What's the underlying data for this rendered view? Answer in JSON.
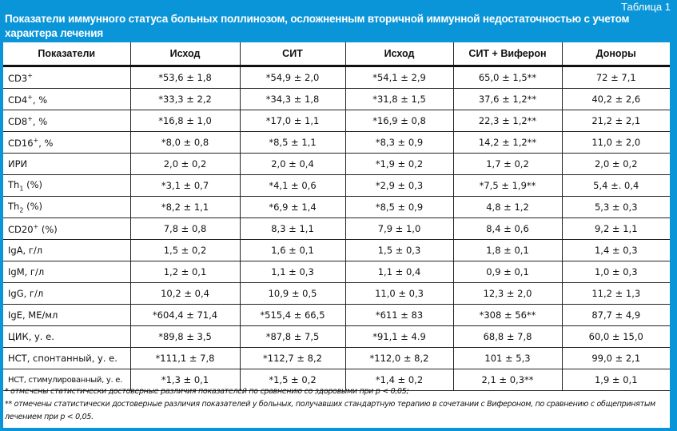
{
  "header": {
    "table_number": "Таблица 1",
    "title": "Показатели иммунного статуса больных поллинозом, осложненным вторичной иммунной недостаточностью с учетом характера лечения"
  },
  "columns": [
    "Показатели",
    "Исход",
    "СИТ",
    "Исход",
    "СИТ + Виферон",
    "Доноры"
  ],
  "rows": [
    {
      "label": "CD3",
      "sup": "+",
      "sub": "",
      "suffix": "",
      "values": [
        "*53,6 ± 1,8",
        "*54,9 ± 2,0",
        "*54,1 ± 2,9",
        "65,0 ± 1,5**",
        "72 ± 7,1"
      ]
    },
    {
      "label": "CD4",
      "sup": "+",
      "sub": "",
      "suffix": ", %",
      "values": [
        "*33,3 ± 2,2",
        "*34,3 ± 1,8",
        "*31,8 ± 1,5",
        "37,6 ± 1,2**",
        "40,2 ± 2,6"
      ]
    },
    {
      "label": "CD8",
      "sup": "+",
      "sub": "",
      "suffix": ", %",
      "values": [
        "*16,8 ± 1,0",
        "*17,0 ± 1,1",
        "*16,9 ± 0,8",
        "22,3 ± 1,2**",
        "21,2 ± 2,1"
      ]
    },
    {
      "label": "CD16",
      "sup": "+",
      "sub": "",
      "suffix": ", %",
      "values": [
        "*8,0 ± 0,8",
        "*8,5 ± 1,1",
        "*8,3 ± 0,9",
        "14,2 ± 1,2**",
        "11,0 ± 2,0"
      ]
    },
    {
      "label": "ИРИ",
      "sup": "",
      "sub": "",
      "suffix": "",
      "values": [
        "2,0 ± 0,2",
        "2,0 ± 0,4",
        "*1,9 ± 0,2",
        "1,7 ± 0,2",
        "2,0 ± 0,2"
      ]
    },
    {
      "label": "Th",
      "sup": "",
      "sub": "1",
      "suffix": " (%)",
      "values": [
        "*3,1 ± 0,7",
        "*4,1 ± 0,6",
        "*2,9 ± 0,3",
        "*7,5 ± 1,9**",
        "5,4 ±. 0,4"
      ]
    },
    {
      "label": "Th",
      "sup": "",
      "sub": "2",
      "suffix": " (%)",
      "values": [
        "*8,2 ± 1,1",
        "*6,9 ± 1,4",
        "*8,5 ± 0,9",
        "4,8 ± 1,2",
        "5,3 ± 0,3"
      ]
    },
    {
      "label": "CD20",
      "sup": "+",
      "sub": "",
      "suffix": " (%)",
      "values": [
        "7,8 ± 0,8",
        "8,3 ± 1,1",
        "7,9 ± 1,0",
        "8,4 ± 0,6",
        "9,2 ± 1,1"
      ]
    },
    {
      "label": "IgA, г/л",
      "sup": "",
      "sub": "",
      "suffix": "",
      "values": [
        "1,5 ± 0,2",
        "1,6 ± 0,1",
        "1,5 ± 0,3",
        "1,8 ± 0,1",
        "1,4 ± 0,3"
      ]
    },
    {
      "label": "IgM, г/л",
      "sup": "",
      "sub": "",
      "suffix": "",
      "values": [
        "1,2 ± 0,1",
        "1,1 ± 0,3",
        "1,1 ± 0,4",
        "0,9 ± 0,1",
        "1,0 ± 0,3"
      ]
    },
    {
      "label": "IgG, г/л",
      "sup": "",
      "sub": "",
      "suffix": "",
      "values": [
        "10,2 ± 0,4",
        "10,9 ± 0,5",
        "11,0 ± 0,3",
        "12,3 ± 2,0",
        "11,2 ± 1,3"
      ]
    },
    {
      "label": "IgE, МЕ/мл",
      "sup": "",
      "sub": "",
      "suffix": "",
      "values": [
        "*604,4 ± 71,4",
        "*515,4 ± 66,5",
        "*611 ± 83",
        "*308 ± 56**",
        "87,7 ± 4,9"
      ]
    },
    {
      "label": "ЦИК, у. е.",
      "sup": "",
      "sub": "",
      "suffix": "",
      "values": [
        "*89,8 ± 3,5",
        "*87,8 ± 7,5",
        "*91,1 ± 4.9",
        "68,8 ± 7,8",
        "60,0 ± 15,0"
      ]
    },
    {
      "label": "НСТ, спонтанный, у. е.",
      "sup": "",
      "sub": "",
      "suffix": "",
      "values": [
        "*111,1 ± 7,8",
        "*112,7 ± 8,2",
        "*112,0 ± 8,2",
        "101 ± 5,3",
        "99,0 ± 2,1"
      ]
    },
    {
      "label": "НСТ, стимулированный, у. е.",
      "sup": "",
      "sub": "",
      "suffix": "",
      "small": true,
      "values": [
        "*1,3 ± 0,1",
        "*1,5 ± 0,2",
        "*1,4 ± 0,2",
        "2,1 ± 0,3**",
        "1,9 ± 0,1"
      ]
    }
  ],
  "footnotes": [
    "* отмечены статистически достоверные различия показателей по сравнению со здоровыми при p < 0,05;",
    "** отмечены статистически достоверные различия показателей у больных, получавших стандартную терапию в сочетании с Вифероном, по сравнению с общепринятым лечением при p < 0,05."
  ],
  "colors": {
    "frame": "#0a95d8",
    "text": "#111111"
  }
}
